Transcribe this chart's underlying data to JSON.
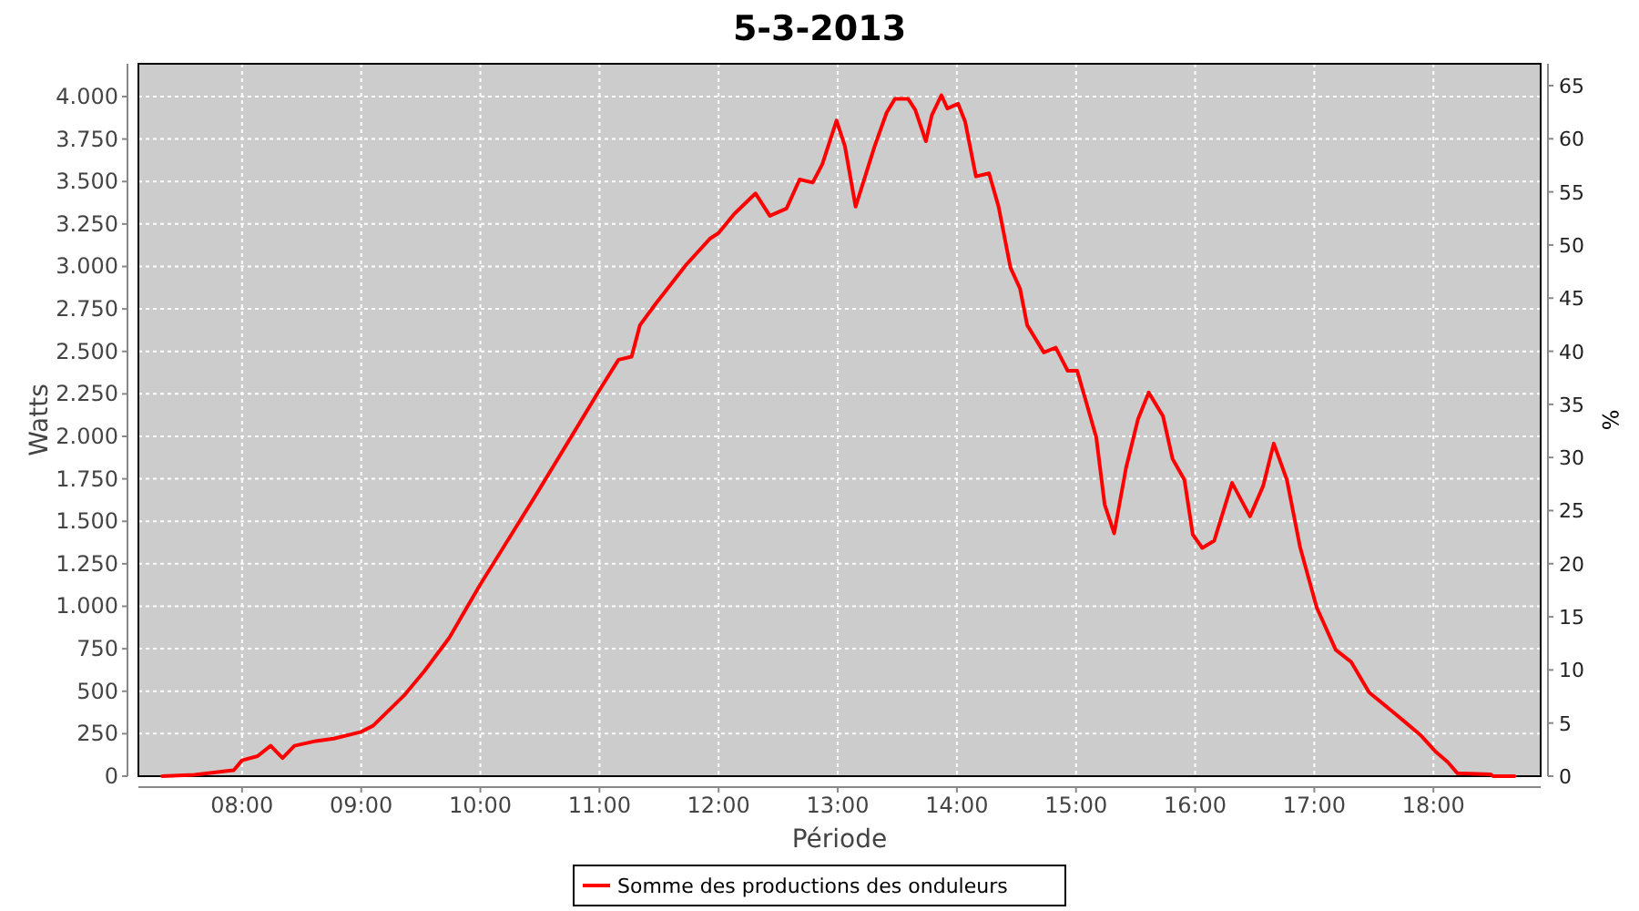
{
  "chart_data": {
    "type": "line",
    "title": "5-3-2013",
    "xlabel": "Période",
    "ylabel": "Watts",
    "y2label": "%",
    "x": [
      7.33,
      7.6,
      7.93,
      8.0,
      8.13,
      8.24,
      8.34,
      8.44,
      8.62,
      8.77,
      9.0,
      9.1,
      9.36,
      9.53,
      9.74,
      10.0,
      10.25,
      10.45,
      10.76,
      11.0,
      11.16,
      11.27,
      11.34,
      11.47,
      11.57,
      11.73,
      11.93,
      12.0,
      12.13,
      12.31,
      12.43,
      12.57,
      12.68,
      12.79,
      12.87,
      12.99,
      13.06,
      13.15,
      13.23,
      13.31,
      13.41,
      13.48,
      13.59,
      13.65,
      13.74,
      13.79,
      13.87,
      13.92,
      14.01,
      14.07,
      14.16,
      14.27,
      14.35,
      14.45,
      14.53,
      14.59,
      14.73,
      14.83,
      14.93,
      15.01,
      15.09,
      15.17,
      15.24,
      15.32,
      15.42,
      15.52,
      15.61,
      15.73,
      15.81,
      15.91,
      15.98,
      16.06,
      16.16,
      16.31,
      16.46,
      16.57,
      16.66,
      16.77,
      16.88,
      17.02,
      17.18,
      17.31,
      17.46,
      17.74,
      17.89,
      18.02,
      18.12,
      18.2,
      18.48,
      18.5,
      18.68
    ],
    "series": [
      {
        "name": "Somme des productions des onduleurs",
        "color": "#ff0000",
        "values": [
          0,
          8,
          35,
          93,
          118,
          179,
          107,
          179,
          207,
          221,
          261,
          297,
          475,
          618,
          815,
          1129,
          1410,
          1636,
          1994,
          2272,
          2451,
          2469,
          2655,
          2779,
          2869,
          3012,
          3165,
          3197,
          3308,
          3430,
          3298,
          3341,
          3512,
          3494,
          3601,
          3859,
          3708,
          3352,
          3530,
          3708,
          3905,
          3987,
          3987,
          3923,
          3737,
          3891,
          4008,
          3930,
          3958,
          3851,
          3530,
          3548,
          3352,
          2993,
          2870,
          2655,
          2494,
          2522,
          2386,
          2386,
          2190,
          1994,
          1600,
          1429,
          1815,
          2101,
          2258,
          2119,
          1868,
          1744,
          1422,
          1343,
          1386,
          1726,
          1529,
          1707,
          1958,
          1744,
          1350,
          993,
          743,
          672,
          493,
          332,
          243,
          143,
          83,
          18,
          11,
          0,
          0
        ]
      }
    ],
    "xlim": [
      7.13,
      18.9
    ],
    "xticks": [
      {
        "value": 8,
        "label": "08:00"
      },
      {
        "value": 9,
        "label": "09:00"
      },
      {
        "value": 10,
        "label": "10:00"
      },
      {
        "value": 11,
        "label": "11:00"
      },
      {
        "value": 12,
        "label": "12:00"
      },
      {
        "value": 13,
        "label": "13:00"
      },
      {
        "value": 14,
        "label": "14:00"
      },
      {
        "value": 15,
        "label": "15:00"
      },
      {
        "value": 16,
        "label": "16:00"
      },
      {
        "value": 17,
        "label": "17:00"
      },
      {
        "value": 18,
        "label": "18:00"
      }
    ],
    "ylim": [
      0,
      4193
    ],
    "yticks": [
      0,
      250,
      500,
      750,
      {
        "value": 1000,
        "label": "1.000"
      },
      {
        "value": 1250,
        "label": "1.250"
      },
      {
        "value": 1500,
        "label": "1.500"
      },
      {
        "value": 1750,
        "label": "1.750"
      },
      {
        "value": 2000,
        "label": "2.000"
      },
      {
        "value": 2250,
        "label": "2.250"
      },
      {
        "value": 2500,
        "label": "2.500"
      },
      {
        "value": 2750,
        "label": "2.750"
      },
      {
        "value": 3000,
        "label": "3.000"
      },
      {
        "value": 3250,
        "label": "3.250"
      },
      {
        "value": 3500,
        "label": "3.500"
      },
      {
        "value": 3750,
        "label": "3.750"
      },
      {
        "value": 4000,
        "label": "4.000"
      }
    ],
    "y2lim": [
      0,
      67.06
    ],
    "y2ticks": [
      0,
      5,
      10,
      15,
      20,
      25,
      30,
      35,
      40,
      45,
      50,
      55,
      60,
      65
    ],
    "grid": true,
    "legend": "bottom",
    "marker": "none",
    "line_style": "solid"
  }
}
